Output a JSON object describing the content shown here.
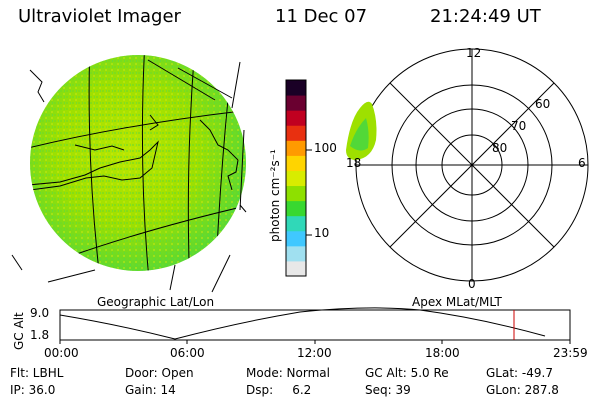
{
  "header": {
    "instrument": "Ultraviolet Imager",
    "date": "11 Dec 07",
    "time": "21:24:49 UT"
  },
  "colorbar": {
    "unit_label": "photon cm⁻²s⁻¹",
    "ticks": [
      "100",
      "10"
    ],
    "colors": [
      "#1a0026",
      "#6a0030",
      "#c00020",
      "#e83010",
      "#ff9a00",
      "#ffd400",
      "#d8ec00",
      "#8ee000",
      "#38d830",
      "#30d8b8",
      "#40c8ff",
      "#a0e0f0",
      "#e8e8e8"
    ]
  },
  "polar": {
    "mlt_labels": [
      "12",
      "18",
      "6",
      "0"
    ],
    "lat_labels": [
      "60",
      "70",
      "80"
    ]
  },
  "panel_labels": {
    "left": "Geographic Lat/Lon",
    "right": "Apex MLat/MLT"
  },
  "altitude_plot": {
    "ylabel": "GC Alt",
    "ymax": "9.0",
    "ymin": "1.8",
    "x_ticks": [
      "00:00",
      "06:00",
      "12:00",
      "18:00",
      "23:59"
    ],
    "marker_color": "#cc0000"
  },
  "info": {
    "row1": [
      "Flt: LBHL",
      "Door: Open",
      "Mode: Normal",
      "GC Alt: 5.0 Re",
      "GLat: -49.7"
    ],
    "row2": [
      "IP: 36.0",
      "Gain: 14",
      "Dsp:     6.2",
      "Seq: 39",
      "GLon: 287.8"
    ]
  }
}
